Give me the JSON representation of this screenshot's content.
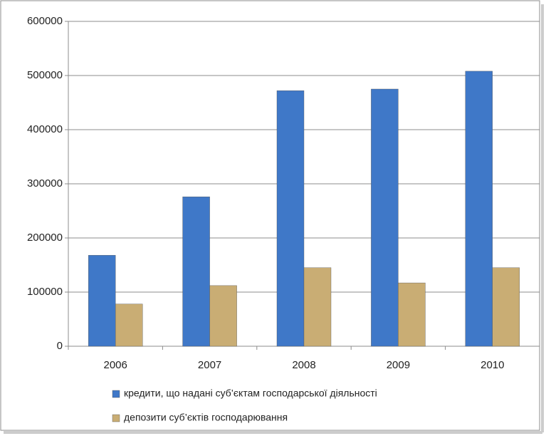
{
  "chart_data": {
    "type": "bar",
    "categories": [
      "2006",
      "2007",
      "2008",
      "2009",
      "2010"
    ],
    "series": [
      {
        "name": "кредити, що надані суб’єктам господарської діяльності",
        "color": "#3f78c8",
        "values": [
          168000,
          276000,
          472000,
          475000,
          508000
        ]
      },
      {
        "name": "депозити суб’єктів господарювання",
        "color": "#c9ad74",
        "values": [
          78000,
          112000,
          145000,
          117000,
          145000
        ]
      }
    ],
    "ylim": [
      0,
      600000
    ],
    "yticks": [
      0,
      100000,
      200000,
      300000,
      400000,
      500000,
      600000
    ],
    "grid": true
  }
}
